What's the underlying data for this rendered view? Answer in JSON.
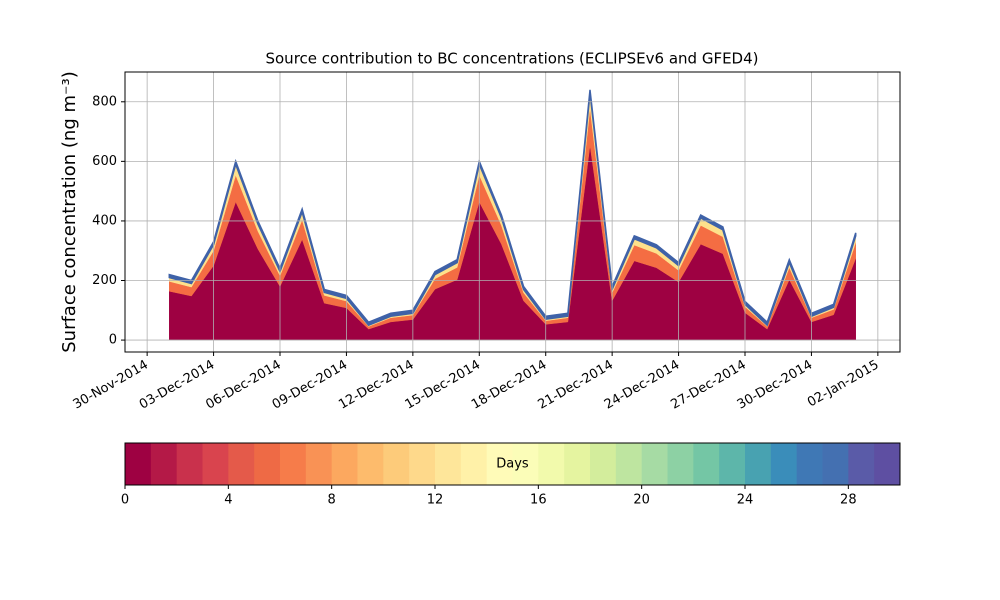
{
  "chart_data": {
    "type": "stackedarea",
    "title": "Source contribution to BC concentrations (ECLIPSEv6 and GFED4)",
    "ylabel": "Surface concentration (ng m⁻³)",
    "x": [
      "2014-12-01",
      "2014-12-02",
      "2014-12-03",
      "2014-12-04",
      "2014-12-05",
      "2014-12-06",
      "2014-12-07",
      "2014-12-08",
      "2014-12-09",
      "2014-12-10",
      "2014-12-11",
      "2014-12-12",
      "2014-12-13",
      "2014-12-14",
      "2014-12-15",
      "2014-12-16",
      "2014-12-17",
      "2014-12-18",
      "2014-12-19",
      "2014-12-20",
      "2014-12-21",
      "2014-12-22",
      "2014-12-23",
      "2014-12-24",
      "2014-12-25",
      "2014-12-26",
      "2014-12-27",
      "2014-12-28",
      "2014-12-29",
      "2014-12-30",
      "2014-12-31",
      "2015-01-01"
    ],
    "series": [
      {
        "color": "#9e0142",
        "values": [
          164,
          148,
          250,
          464,
          306,
          180,
          338,
          124,
          108,
          37,
          61,
          69,
          171,
          203,
          464,
          322,
          132,
          53,
          61,
          654,
          132,
          266,
          243,
          195,
          322,
          290,
          92,
          37,
          203,
          61,
          85,
          274
        ]
      },
      {
        "color": "#f46d43",
        "values": [
          33,
          30,
          50,
          90,
          60,
          36,
          66,
          26,
          23,
          9,
          14,
          15,
          35,
          41,
          90,
          63,
          27,
          12,
          14,
          126,
          27,
          53,
          48,
          39,
          63,
          57,
          20,
          9,
          41,
          14,
          18,
          54
        ]
      },
      {
        "color": "#fee08b",
        "values": [
          13,
          12,
          20,
          36,
          24,
          14,
          26,
          10,
          9,
          4,
          5,
          6,
          14,
          16,
          36,
          25,
          11,
          5,
          5,
          50,
          11,
          21,
          19,
          16,
          25,
          23,
          8,
          4,
          16,
          5,
          7,
          22
        ]
      },
      {
        "color": "#3f62a8",
        "values": [
          10,
          10,
          10,
          10,
          10,
          10,
          10,
          10,
          10,
          10,
          10,
          10,
          10,
          10,
          10,
          10,
          10,
          10,
          10,
          10,
          10,
          10,
          10,
          10,
          10,
          10,
          10,
          10,
          10,
          10,
          10,
          10
        ]
      }
    ],
    "xlim": [
      "2014-11-29",
      "2015-01-03"
    ],
    "xticks": [
      {
        "value": "2014-11-30",
        "label": "30-Nov-2014"
      },
      {
        "value": "2014-12-03",
        "label": "03-Dec-2014"
      },
      {
        "value": "2014-12-06",
        "label": "06-Dec-2014"
      },
      {
        "value": "2014-12-09",
        "label": "09-Dec-2014"
      },
      {
        "value": "2014-12-12",
        "label": "12-Dec-2014"
      },
      {
        "value": "2014-12-15",
        "label": "15-Dec-2014"
      },
      {
        "value": "2014-12-18",
        "label": "18-Dec-2014"
      },
      {
        "value": "2014-12-21",
        "label": "21-Dec-2014"
      },
      {
        "value": "2014-12-24",
        "label": "24-Dec-2014"
      },
      {
        "value": "2014-12-27",
        "label": "27-Dec-2014"
      },
      {
        "value": "2014-12-30",
        "label": "30-Dec-2014"
      },
      {
        "value": "2015-01-02",
        "label": "02-Jan-2015"
      }
    ],
    "ylim": [
      -40,
      900
    ],
    "yticks": [
      0,
      200,
      400,
      600,
      800
    ],
    "grid": true,
    "colorbar": {
      "label": "Days",
      "lim": [
        0,
        30
      ],
      "ticks": [
        0,
        4,
        8,
        12,
        16,
        20,
        24,
        28
      ],
      "colors": [
        "#9e0142",
        "#b41947",
        "#c9314c",
        "#d9444e",
        "#e45a4a",
        "#ee6a45",
        "#f67c4a",
        "#f99255",
        "#fca85f",
        "#fdbb6c",
        "#fdcb7a",
        "#fed98b",
        "#fee69a",
        "#fff1a8",
        "#fffbb8",
        "#fbfdb8",
        "#f2faac",
        "#e5f4a0",
        "#d3ed9c",
        "#bee5a0",
        "#a6dba4",
        "#8dd1a4",
        "#74c6a5",
        "#5db6aa",
        "#48a2b1",
        "#3a8dba",
        "#3f78b5",
        "#4470b1",
        "#5a5ba8",
        "#5e4fa2"
      ]
    }
  }
}
